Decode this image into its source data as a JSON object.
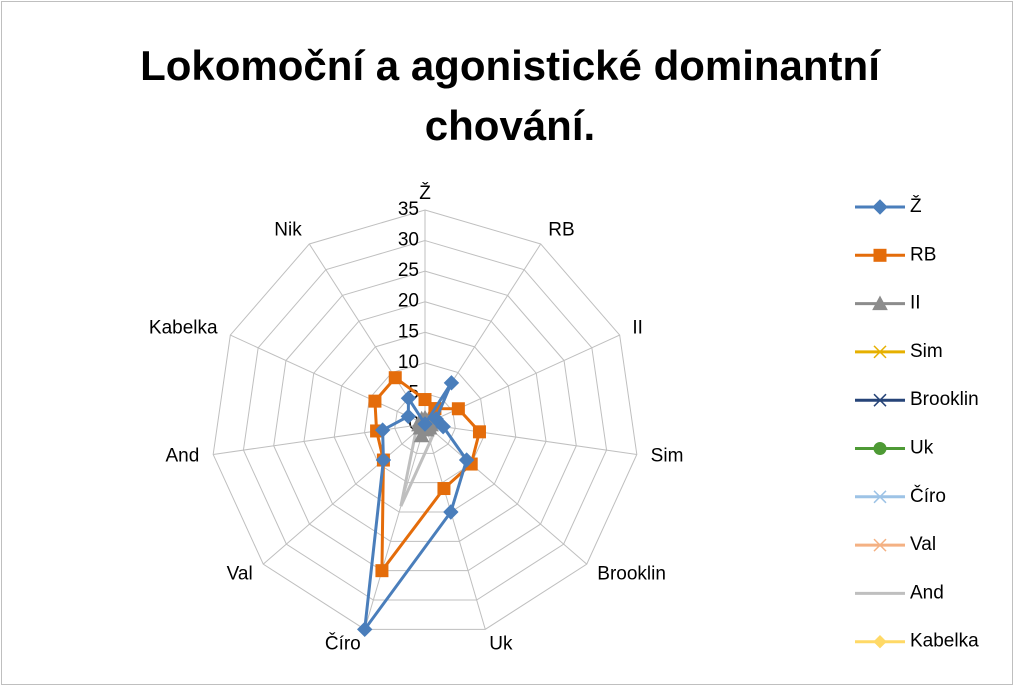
{
  "chart_data": {
    "type": "radar",
    "title": "Lokomoční a agonistické dominantní chování.",
    "categories": [
      "Ž",
      "RB",
      "II",
      "Sim",
      "Brooklin",
      "Uk",
      "Číro",
      "Val",
      "And",
      "Kabelka",
      "Nik"
    ],
    "ylim": [
      0,
      35
    ],
    "yticks": [
      0,
      5,
      10,
      15,
      20,
      25,
      30,
      35
    ],
    "grid": true,
    "legend": "right",
    "series": [
      {
        "name": "Ž",
        "color": "#4a7ebb",
        "values": [
          0,
          8,
          2,
          3,
          9,
          15,
          35,
          9,
          7,
          3,
          5
        ]
      },
      {
        "name": "RB",
        "color": "#e46c0a",
        "values": [
          4,
          3,
          6,
          9,
          10,
          11,
          25,
          9,
          8,
          9,
          9
        ]
      },
      {
        "name": "II",
        "color": "#8c8c8c",
        "values": [
          1,
          2,
          1,
          1,
          1,
          1,
          2,
          1,
          1,
          1,
          1
        ]
      },
      {
        "name": "Sim",
        "color": "#e6b000",
        "values": [
          0,
          0,
          0,
          0,
          0,
          0,
          1,
          0,
          0,
          0,
          0
        ]
      },
      {
        "name": "Brooklin",
        "color": "#264478",
        "values": [
          0,
          0,
          0,
          0,
          0,
          0,
          0,
          0,
          0,
          0,
          0
        ]
      },
      {
        "name": "Uk",
        "color": "#4e9a35",
        "values": [
          0,
          0,
          0,
          0,
          0,
          0,
          0,
          0,
          0,
          0,
          0
        ]
      },
      {
        "name": "Číro",
        "color": "#9dc3e6",
        "values": [
          1,
          1,
          1,
          1,
          1,
          1,
          1,
          1,
          1,
          1,
          1
        ]
      },
      {
        "name": "Val",
        "color": "#f4b183",
        "values": [
          0,
          0,
          0,
          0,
          0,
          0,
          0,
          0,
          0,
          0,
          0
        ]
      },
      {
        "name": "And",
        "color": "#bfbfbf",
        "values": [
          1,
          1,
          1,
          2,
          2,
          3,
          14,
          2,
          1,
          1,
          1
        ]
      },
      {
        "name": "Kabelka",
        "color": "#ffd966",
        "values": [
          0,
          0,
          0,
          0,
          0,
          0,
          0,
          0,
          0,
          0,
          0
        ]
      }
    ]
  }
}
